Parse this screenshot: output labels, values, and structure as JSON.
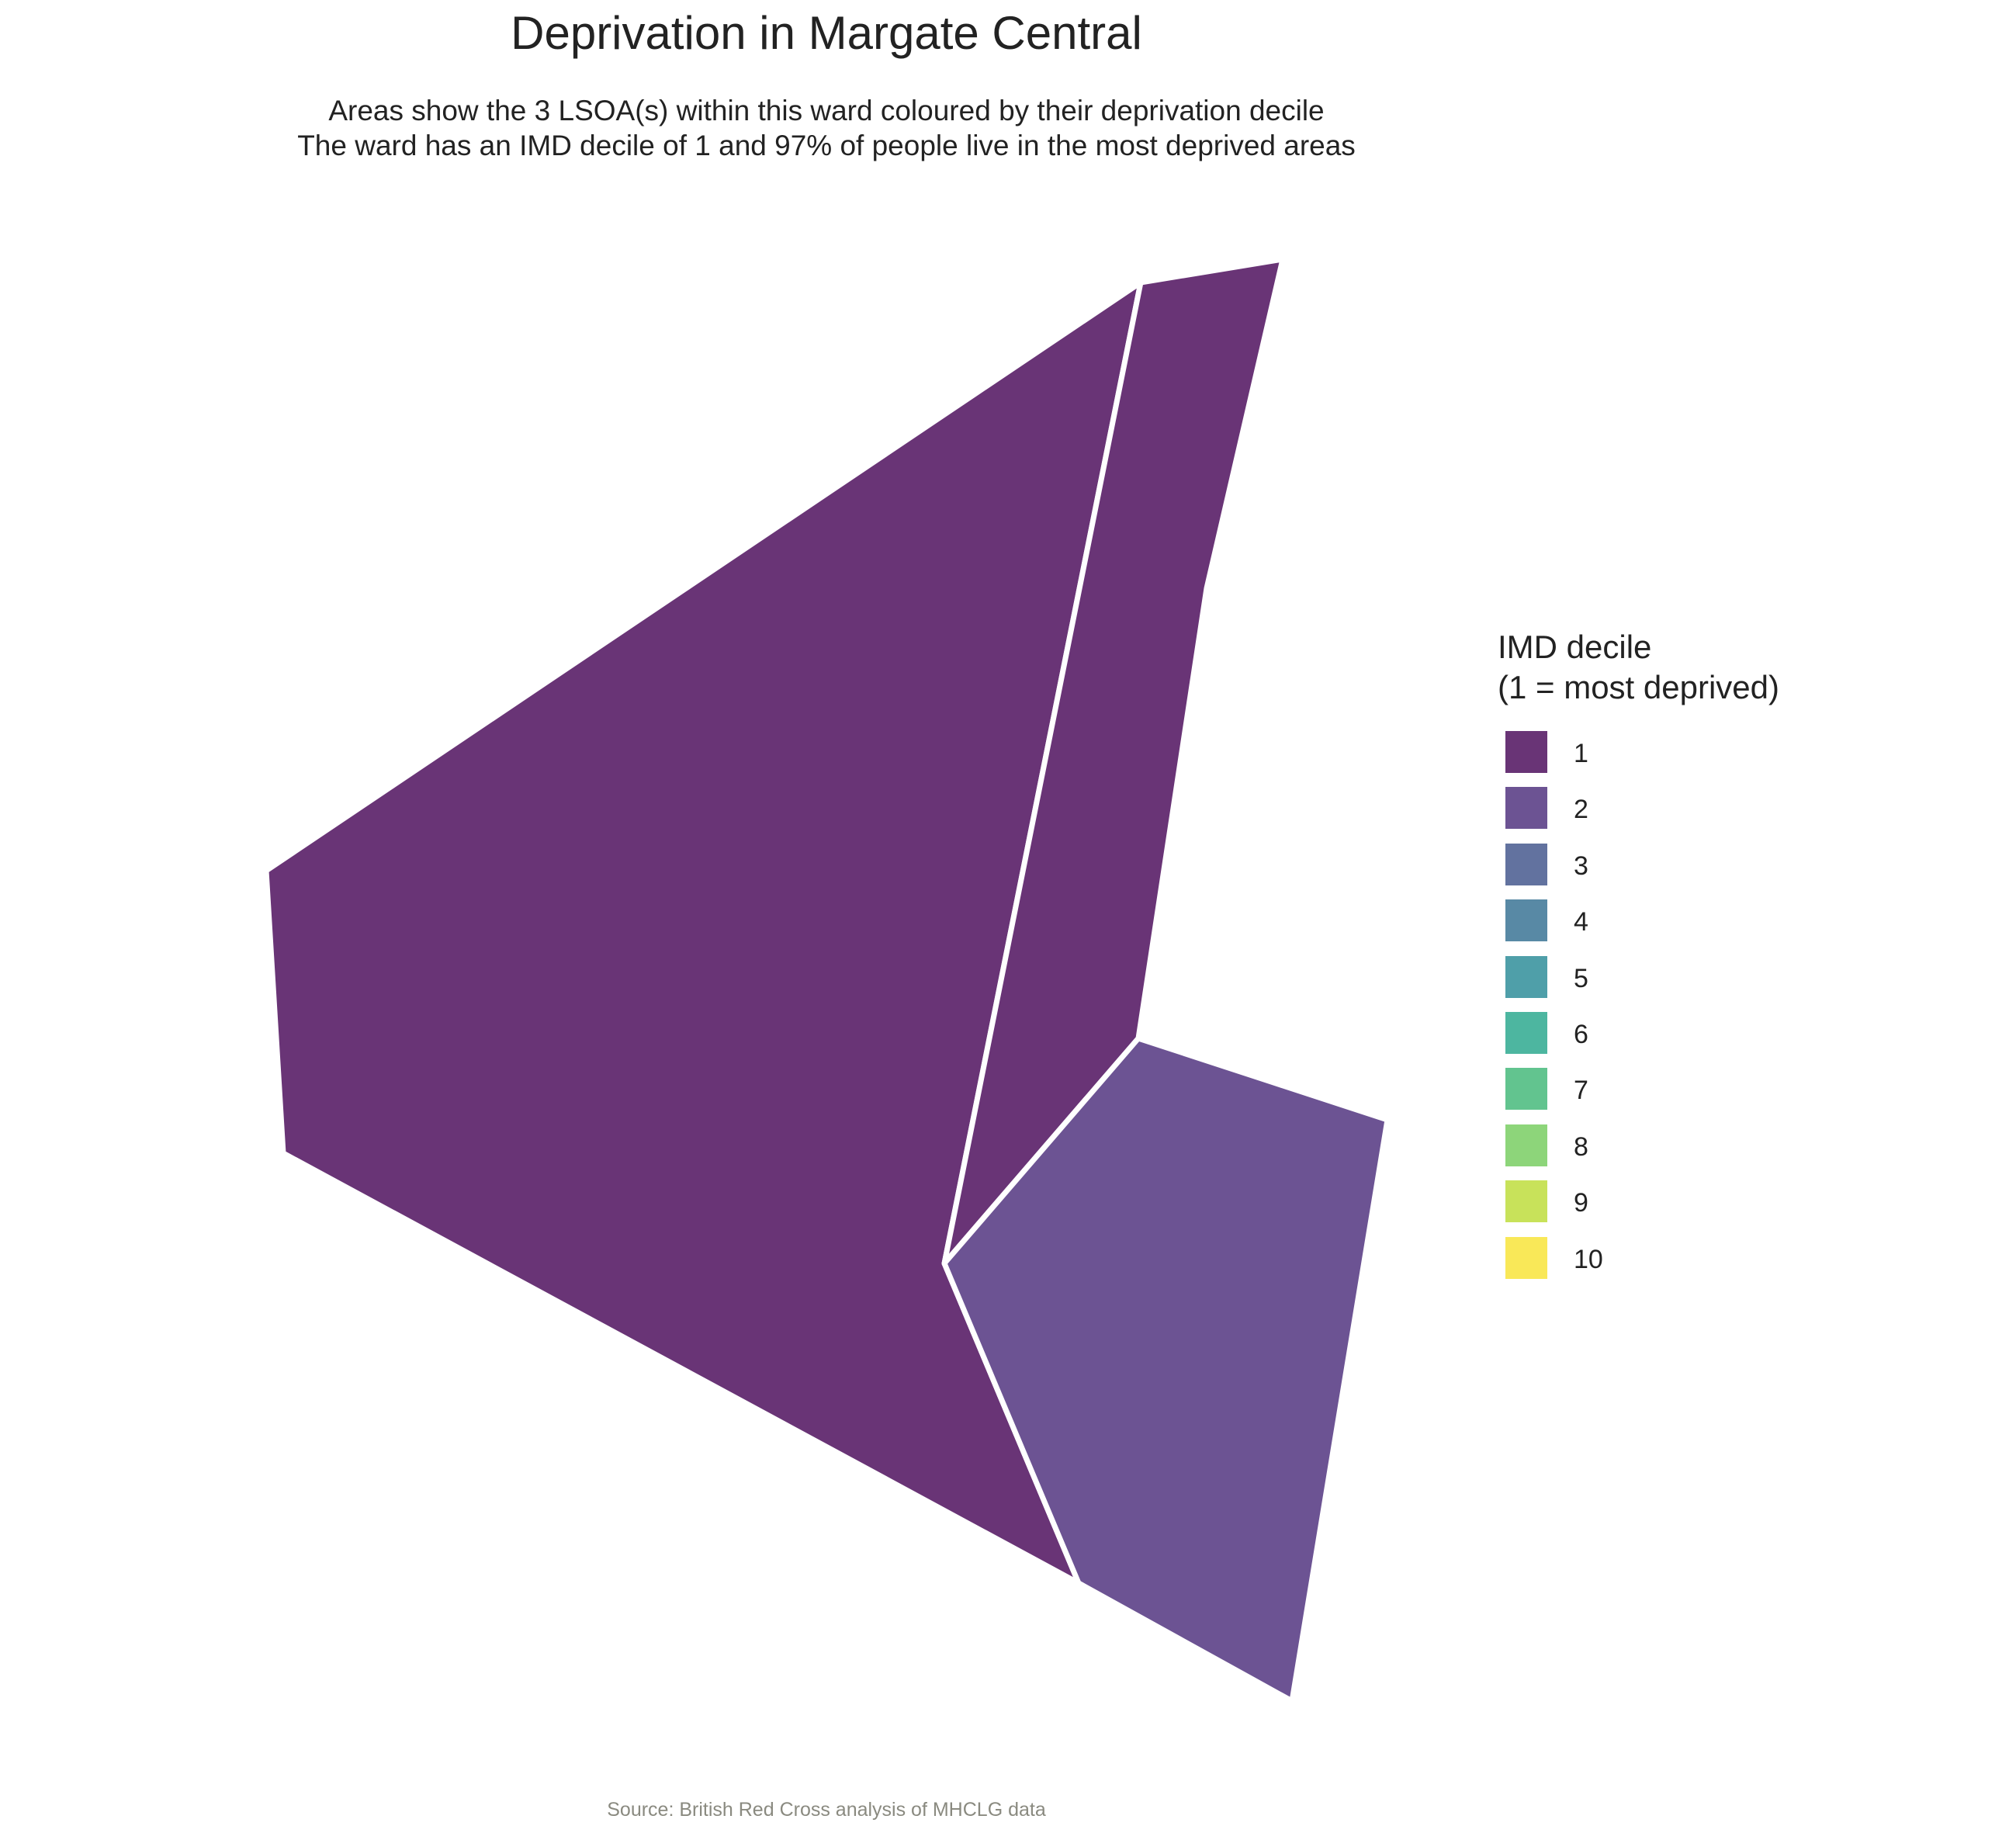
{
  "title": "Deprivation in Margate Central",
  "subtitle_line1": "Areas show the 3 LSOA(s) within this ward coloured by their deprivation decile",
  "subtitle_line2": "The ward has an IMD decile of 1 and 97% of people live in the most deprived areas",
  "caption": "Source: British Red Cross analysis of MHCLG data",
  "legend": {
    "title_line1": "IMD decile",
    "title_line2": "(1 = most deprived)",
    "items": [
      {
        "label": "1",
        "color": "#693476"
      },
      {
        "label": "2",
        "color": "#6c5393"
      },
      {
        "label": "3",
        "color": "#62729f"
      },
      {
        "label": "4",
        "color": "#5889a5"
      },
      {
        "label": "5",
        "color": "#4f9fa9"
      },
      {
        "label": "6",
        "color": "#4db6a0"
      },
      {
        "label": "7",
        "color": "#62c48f"
      },
      {
        "label": "8",
        "color": "#8dd57a"
      },
      {
        "label": "9",
        "color": "#c8e25a"
      },
      {
        "label": "10",
        "color": "#f9e858"
      }
    ]
  },
  "areas": [
    {
      "name": "lsoa-west",
      "decile": 1,
      "color": "#693476"
    },
    {
      "name": "lsoa-north",
      "decile": 1,
      "color": "#693476"
    },
    {
      "name": "lsoa-southeast",
      "decile": 2,
      "color": "#6c5393"
    }
  ],
  "border_color": "#ffffff"
}
